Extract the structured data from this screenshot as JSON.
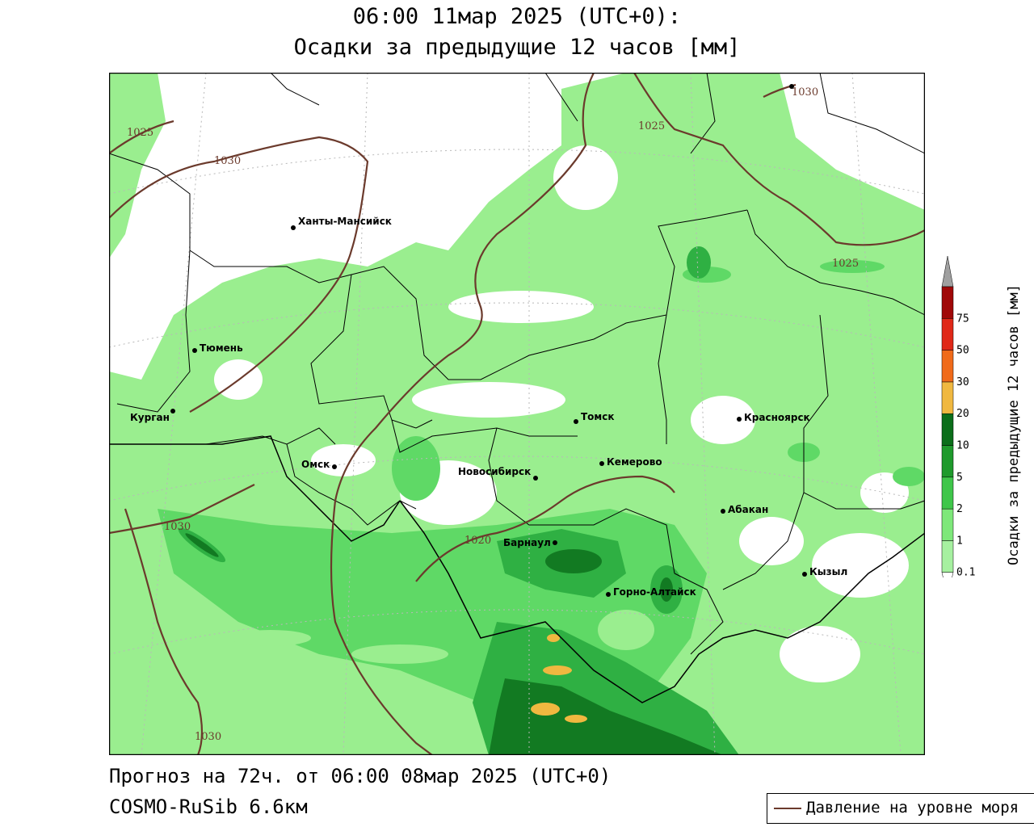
{
  "title_line1": "06:00 11мар 2025 (UTC+0):",
  "title_line2": "Осадки за предыдущие 12 часов [мм]",
  "footer_line1": "Прогноз на 72ч. от 06:00 08мар 2025 (UTC+0)",
  "footer_line2": "COSMO-RuSib 6.6км",
  "legend_label": "Давление на уровне моря",
  "colorbar_title": "Осадки за предыдущие 12 часов [мм]",
  "colorbar": {
    "levels": [
      "0.1",
      "1",
      "2",
      "5",
      "10",
      "20",
      "30",
      "50",
      "75"
    ],
    "colors": [
      "#a6f0a0",
      "#7ee87a",
      "#3fc64a",
      "#1f9a2c",
      "#0b6e1a",
      "#f0b840",
      "#f06a1a",
      "#e02818",
      "#a00808"
    ],
    "top_color": "#a0a0a0"
  },
  "colors": {
    "light_green": "#9aee8f",
    "mid_green": "#5fd966",
    "green": "#2fb043",
    "dark_green": "#127a22",
    "orange": "#f0b840",
    "isobar": "#6b3a2c"
  },
  "cities": [
    {
      "name": "Ханты-Мансийск"
    },
    {
      "name": "Тюмень"
    },
    {
      "name": "Курган"
    },
    {
      "name": "Омск"
    },
    {
      "name": "Новосибирск"
    },
    {
      "name": "Томск"
    },
    {
      "name": "Кемерово"
    },
    {
      "name": "Красноярск"
    },
    {
      "name": "Абакан"
    },
    {
      "name": "Барнаул"
    },
    {
      "name": "Горно-Алтайск"
    },
    {
      "name": "Кызыл"
    }
  ],
  "isobar_labels": [
    "1025",
    "1030",
    "1030",
    "1025",
    "1025",
    "1030",
    "1020",
    "1030"
  ]
}
